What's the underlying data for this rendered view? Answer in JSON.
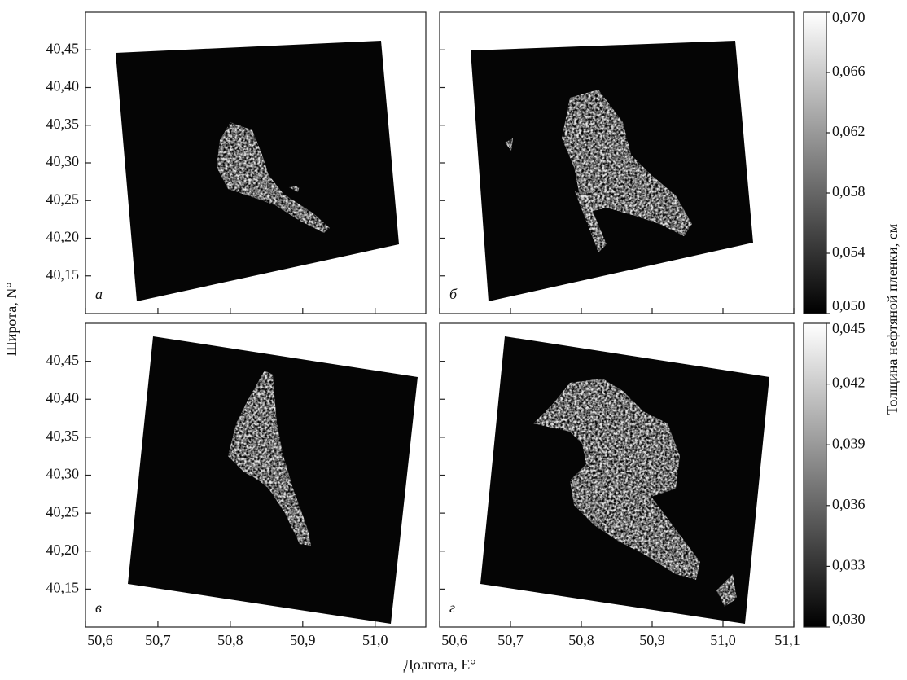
{
  "chart_data": {
    "type": "image-grid",
    "x_label": "Долгота, E°",
    "y_label": "Широта, N°",
    "colorbar_label": "Толщина нефтяной пленки, см",
    "panels": [
      {
        "label": "а",
        "xlim": [
          50.6,
          51.07
        ],
        "ylim": [
          40.1,
          40.5
        ],
        "show_xtick_labels": false,
        "show_ytick_labels": true,
        "xticks": [
          {
            "value": 50.6,
            "label": "50,6"
          },
          {
            "value": 50.7,
            "label": "50,7"
          },
          {
            "value": 50.8,
            "label": "50,8"
          },
          {
            "value": 50.9,
            "label": "50,9"
          },
          {
            "value": 51.0,
            "label": "51,0"
          }
        ],
        "yticks": [
          {
            "value": 40.15,
            "label": "40,15"
          },
          {
            "value": 40.2,
            "label": "40,20"
          },
          {
            "value": 40.25,
            "label": "40,25"
          },
          {
            "value": 40.3,
            "label": "40,30"
          },
          {
            "value": 40.35,
            "label": "40,35"
          },
          {
            "value": 40.4,
            "label": "40,40"
          },
          {
            "value": 40.45,
            "label": "40,45"
          }
        ]
      },
      {
        "label": "б",
        "xlim": [
          50.6,
          51.1
        ],
        "ylim": [
          40.1,
          40.5
        ],
        "show_xtick_labels": false,
        "show_ytick_labels": false,
        "xticks": [
          {
            "value": 50.6,
            "label": "50,6"
          },
          {
            "value": 50.7,
            "label": "50,7"
          },
          {
            "value": 50.8,
            "label": "50,8"
          },
          {
            "value": 50.9,
            "label": "50,9"
          },
          {
            "value": 51.0,
            "label": "51,0"
          },
          {
            "value": 51.1,
            "label": "51,1"
          }
        ],
        "yticks": [
          {
            "value": 40.15,
            "label": "40,15"
          },
          {
            "value": 40.2,
            "label": "40,20"
          },
          {
            "value": 40.25,
            "label": "40,25"
          },
          {
            "value": 40.3,
            "label": "40,30"
          },
          {
            "value": 40.35,
            "label": "40,35"
          },
          {
            "value": 40.4,
            "label": "40,40"
          },
          {
            "value": 40.45,
            "label": "40,45"
          }
        ]
      },
      {
        "label": "в",
        "xlim": [
          50.6,
          51.07
        ],
        "ylim": [
          40.1,
          40.5
        ],
        "show_xtick_labels": true,
        "show_ytick_labels": true,
        "xticks": [
          {
            "value": 50.6,
            "label": "50,6"
          },
          {
            "value": 50.7,
            "label": "50,7"
          },
          {
            "value": 50.8,
            "label": "50,8"
          },
          {
            "value": 50.9,
            "label": "50,9"
          },
          {
            "value": 51.0,
            "label": "51,0"
          }
        ],
        "yticks": [
          {
            "value": 40.15,
            "label": "40,15"
          },
          {
            "value": 40.2,
            "label": "40,20"
          },
          {
            "value": 40.25,
            "label": "40,25"
          },
          {
            "value": 40.3,
            "label": "40,30"
          },
          {
            "value": 40.35,
            "label": "40,35"
          },
          {
            "value": 40.4,
            "label": "40,40"
          },
          {
            "value": 40.45,
            "label": "40,45"
          }
        ]
      },
      {
        "label": "г",
        "xlim": [
          50.6,
          51.1
        ],
        "ylim": [
          40.1,
          40.5
        ],
        "show_xtick_labels": true,
        "show_ytick_labels": false,
        "xticks": [
          {
            "value": 50.6,
            "label": "50,6"
          },
          {
            "value": 50.7,
            "label": "50,7"
          },
          {
            "value": 50.8,
            "label": "50,8"
          },
          {
            "value": 50.9,
            "label": "50,9"
          },
          {
            "value": 51.0,
            "label": "51,0"
          },
          {
            "value": 51.1,
            "label": "51,1"
          }
        ],
        "yticks": [
          {
            "value": 40.15,
            "label": "40,15"
          },
          {
            "value": 40.2,
            "label": "40,20"
          },
          {
            "value": 40.25,
            "label": "40,25"
          },
          {
            "value": 40.3,
            "label": "40,30"
          },
          {
            "value": 40.35,
            "label": "40,35"
          },
          {
            "value": 40.4,
            "label": "40,40"
          },
          {
            "value": 40.45,
            "label": "40,45"
          }
        ]
      }
    ],
    "colorbars": [
      {
        "ylim": [
          0.05,
          0.07
        ],
        "yticks": [
          {
            "value": 0.05,
            "label": "0,050"
          },
          {
            "value": 0.054,
            "label": "0,054"
          },
          {
            "value": 0.058,
            "label": "0,058"
          },
          {
            "value": 0.062,
            "label": "0,062"
          },
          {
            "value": 0.066,
            "label": "0,066"
          },
          {
            "value": 0.07,
            "label": "0,070"
          }
        ]
      },
      {
        "ylim": [
          0.03,
          0.045
        ],
        "yticks": [
          {
            "value": 0.03,
            "label": "0,030"
          },
          {
            "value": 0.033,
            "label": "0,033"
          },
          {
            "value": 0.036,
            "label": "0,036"
          },
          {
            "value": 0.039,
            "label": "0,039"
          },
          {
            "value": 0.042,
            "label": "0,042"
          },
          {
            "value": 0.045,
            "label": "0,045"
          }
        ]
      }
    ]
  }
}
